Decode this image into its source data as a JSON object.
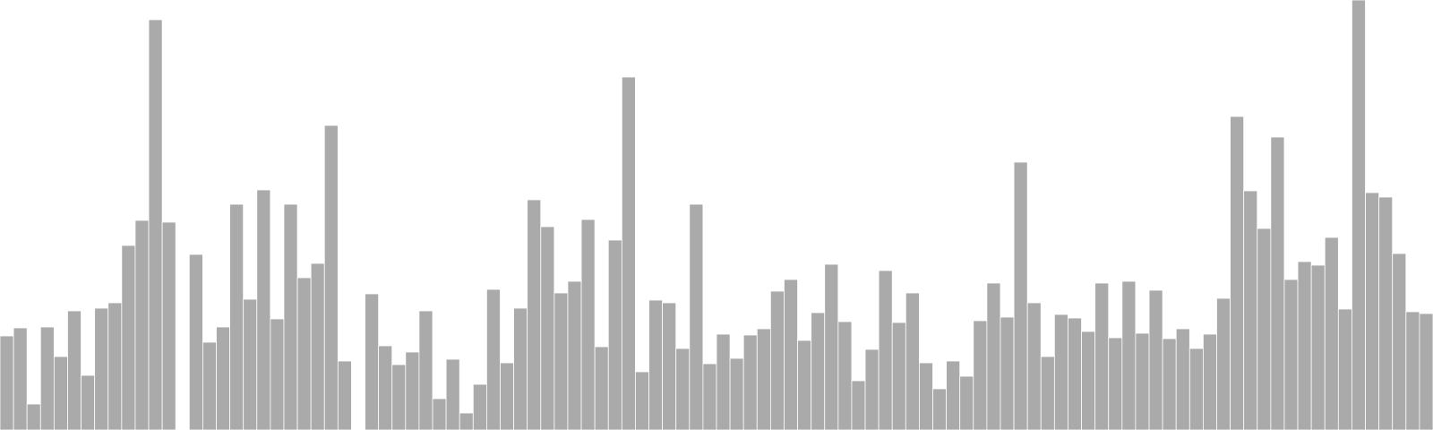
{
  "chart_data": {
    "type": "bar",
    "title": "",
    "xlabel": "",
    "ylabel": "",
    "grid": false,
    "legend": "none",
    "bar_color": "#aaaaaa",
    "bar_edge_color": "#ffffff",
    "ylim": [
      0,
      480
    ],
    "values": [
      105,
      114,
      29,
      115,
      82,
      133,
      61,
      136,
      142,
      206,
      234,
      458,
      232,
      0,
      196,
      98,
      115,
      252,
      146,
      268,
      124,
      252,
      170,
      186,
      340,
      77,
      0,
      152,
      94,
      73,
      87,
      133,
      35,
      79,
      19,
      51,
      157,
      75,
      136,
      257,
      227,
      153,
      166,
      235,
      93,
      212,
      394,
      65,
      145,
      142,
      91,
      252,
      74,
      107,
      80,
      106,
      113,
      155,
      168,
      100,
      131,
      185,
      121,
      55,
      90,
      178,
      120,
      153,
      75,
      46,
      77,
      60,
      122,
      164,
      126,
      299,
      142,
      82,
      129,
      125,
      110,
      164,
      103,
      166,
      108,
      156,
      102,
      113,
      91,
      107,
      147,
      350,
      267,
      225,
      327,
      168,
      188,
      184,
      215,
      135,
      480,
      265,
      260,
      197,
      132,
      130
    ]
  }
}
